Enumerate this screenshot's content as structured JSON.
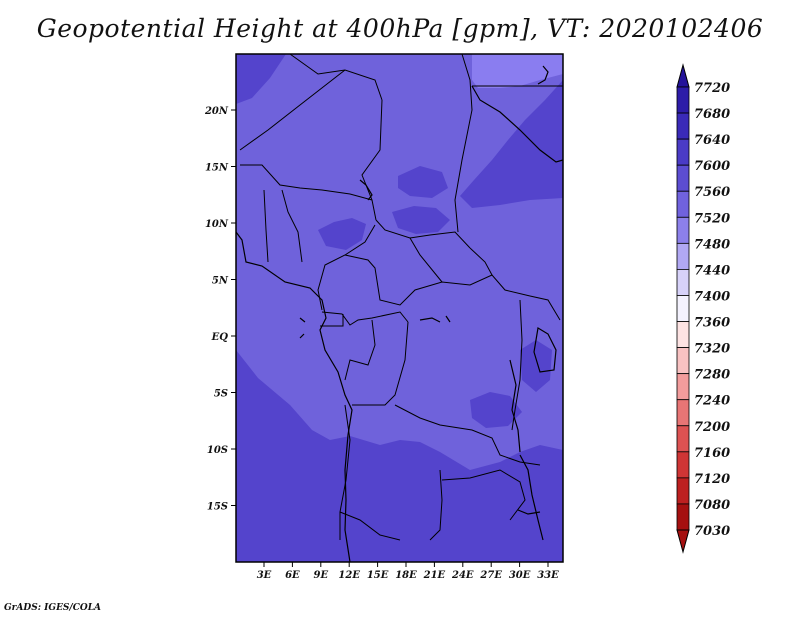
{
  "title": "Geopotential Height at 400hPa [gpm], VT: 2020102406",
  "credit": "GrADS: IGES/COLA",
  "map": {
    "lat_ticks": [
      "20N",
      "15N",
      "10N",
      "5N",
      "EQ",
      "5S",
      "10S",
      "15S"
    ],
    "lon_ticks": [
      "3E",
      "6E",
      "9E",
      "12E",
      "15E",
      "18E",
      "21E",
      "24E",
      "27E",
      "30E",
      "33E"
    ],
    "colors": {
      "base_fill": "#6f62db",
      "low_zone": "#5444cc",
      "high_zone": "#8a7df0",
      "borders": "#000000"
    }
  },
  "colorbar": {
    "labels": [
      "7720",
      "7680",
      "7640",
      "7600",
      "7560",
      "7520",
      "7480",
      "7440",
      "7400",
      "7360",
      "7320",
      "7280",
      "7240",
      "7200",
      "7160",
      "7120",
      "7080",
      "7030"
    ],
    "colors": [
      "#24139a",
      "#2d1ca8",
      "#3a2ab8",
      "#4a3bc6",
      "#5c4dd2",
      "#7062de",
      "#8c80ea",
      "#b1a8f3",
      "#d7d2f9",
      "#f4f2fe",
      "#fde3e3",
      "#f8c2c2",
      "#f29c9c",
      "#e87575",
      "#dd5252",
      "#cf3535",
      "#bd2020",
      "#a51010"
    ]
  }
}
